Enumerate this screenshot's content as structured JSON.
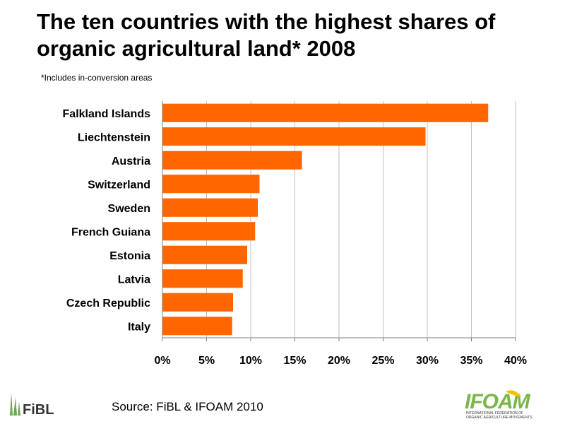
{
  "title": "The ten countries with the highest shares of organic agricultural land* 2008",
  "footnote": "*Includes in-conversion areas",
  "source": "Source: FiBL & IFOAM 2010",
  "logos": {
    "left": "FiBL",
    "right": "IFOAM",
    "right_subtext": "INTERNATIONAL FEDERATION OF ORGANIC AGRICULTURE MOVEMENTS"
  },
  "colors": {
    "bar": "#ff6600",
    "grid": "#c0c0c0",
    "fibl_green": "#6aa84f",
    "ifoam_green": "#7ab648",
    "ifoam_yellow": "#f2c200"
  },
  "chart_data": {
    "type": "bar",
    "orientation": "horizontal",
    "categories": [
      "Falkland Islands",
      "Liechtenstein",
      "Austria",
      "Switzerland",
      "Sweden",
      "French Guiana",
      "Estonia",
      "Latvia",
      "Czech Republic",
      "Italy"
    ],
    "values": [
      36.9,
      29.8,
      15.8,
      11.0,
      10.8,
      10.5,
      9.6,
      9.1,
      8.0,
      7.9
    ],
    "xlim": [
      0,
      40
    ],
    "xticks": [
      0,
      5,
      10,
      15,
      20,
      25,
      30,
      35,
      40
    ],
    "xtick_labels": [
      "0%",
      "5%",
      "10%",
      "15%",
      "20%",
      "25%",
      "30%",
      "35%",
      "40%"
    ],
    "grid": true,
    "legend": "none"
  }
}
